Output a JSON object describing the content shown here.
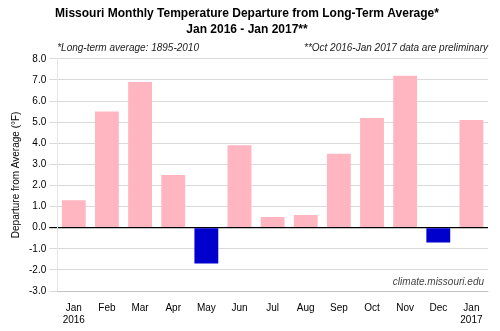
{
  "chart_data": {
    "type": "bar",
    "title": "Missouri Monthly Temperature Departure from Long-Term Average*",
    "subtitle": "Jan 2016 - Jan 2017**",
    "ylabel": "Departure from Average (°F)",
    "categories": [
      [
        "Jan",
        "2016"
      ],
      "Feb",
      "Mar",
      "Apr",
      "May",
      "Jun",
      "Jul",
      "Aug",
      "Sep",
      "Oct",
      "Nov",
      "Dec",
      [
        "Jan",
        "2017"
      ]
    ],
    "values": [
      1.3,
      5.5,
      6.9,
      2.5,
      -1.7,
      3.9,
      0.5,
      0.6,
      3.5,
      5.2,
      7.2,
      -0.7,
      5.1
    ],
    "colors": [
      "#FFB6C1",
      "#FFB6C1",
      "#FFB6C1",
      "#FFB6C1",
      "#0000CD",
      "#FFB6C1",
      "#FFB6C1",
      "#FFB6C1",
      "#FFB6C1",
      "#FFB6C1",
      "#FFB6C1",
      "#0000CD",
      "#FFB6C1"
    ],
    "ylim": [
      -3.0,
      8.0
    ],
    "yticks": [
      {
        "value": -3,
        "label": "-3.0"
      },
      {
        "value": -2,
        "label": "-2.0"
      },
      {
        "value": -1,
        "label": "-1.0"
      },
      {
        "value": 0,
        "label": "0.0"
      },
      {
        "value": 1,
        "label": "1.0"
      },
      {
        "value": 2,
        "label": "2.0"
      },
      {
        "value": 3,
        "label": "3.0"
      },
      {
        "value": 4,
        "label": "4.0"
      },
      {
        "value": 5,
        "label": "5.0"
      },
      {
        "value": 6,
        "label": "6.0"
      },
      {
        "value": 7,
        "label": "7.0"
      },
      {
        "value": 8,
        "label": "8.0"
      }
    ],
    "annotations": [
      "*Long-term average: 1895-2010",
      "**Oct 2016-Jan 2017 data are preliminary",
      "climate.missouri.edu"
    ],
    "grid": true
  }
}
